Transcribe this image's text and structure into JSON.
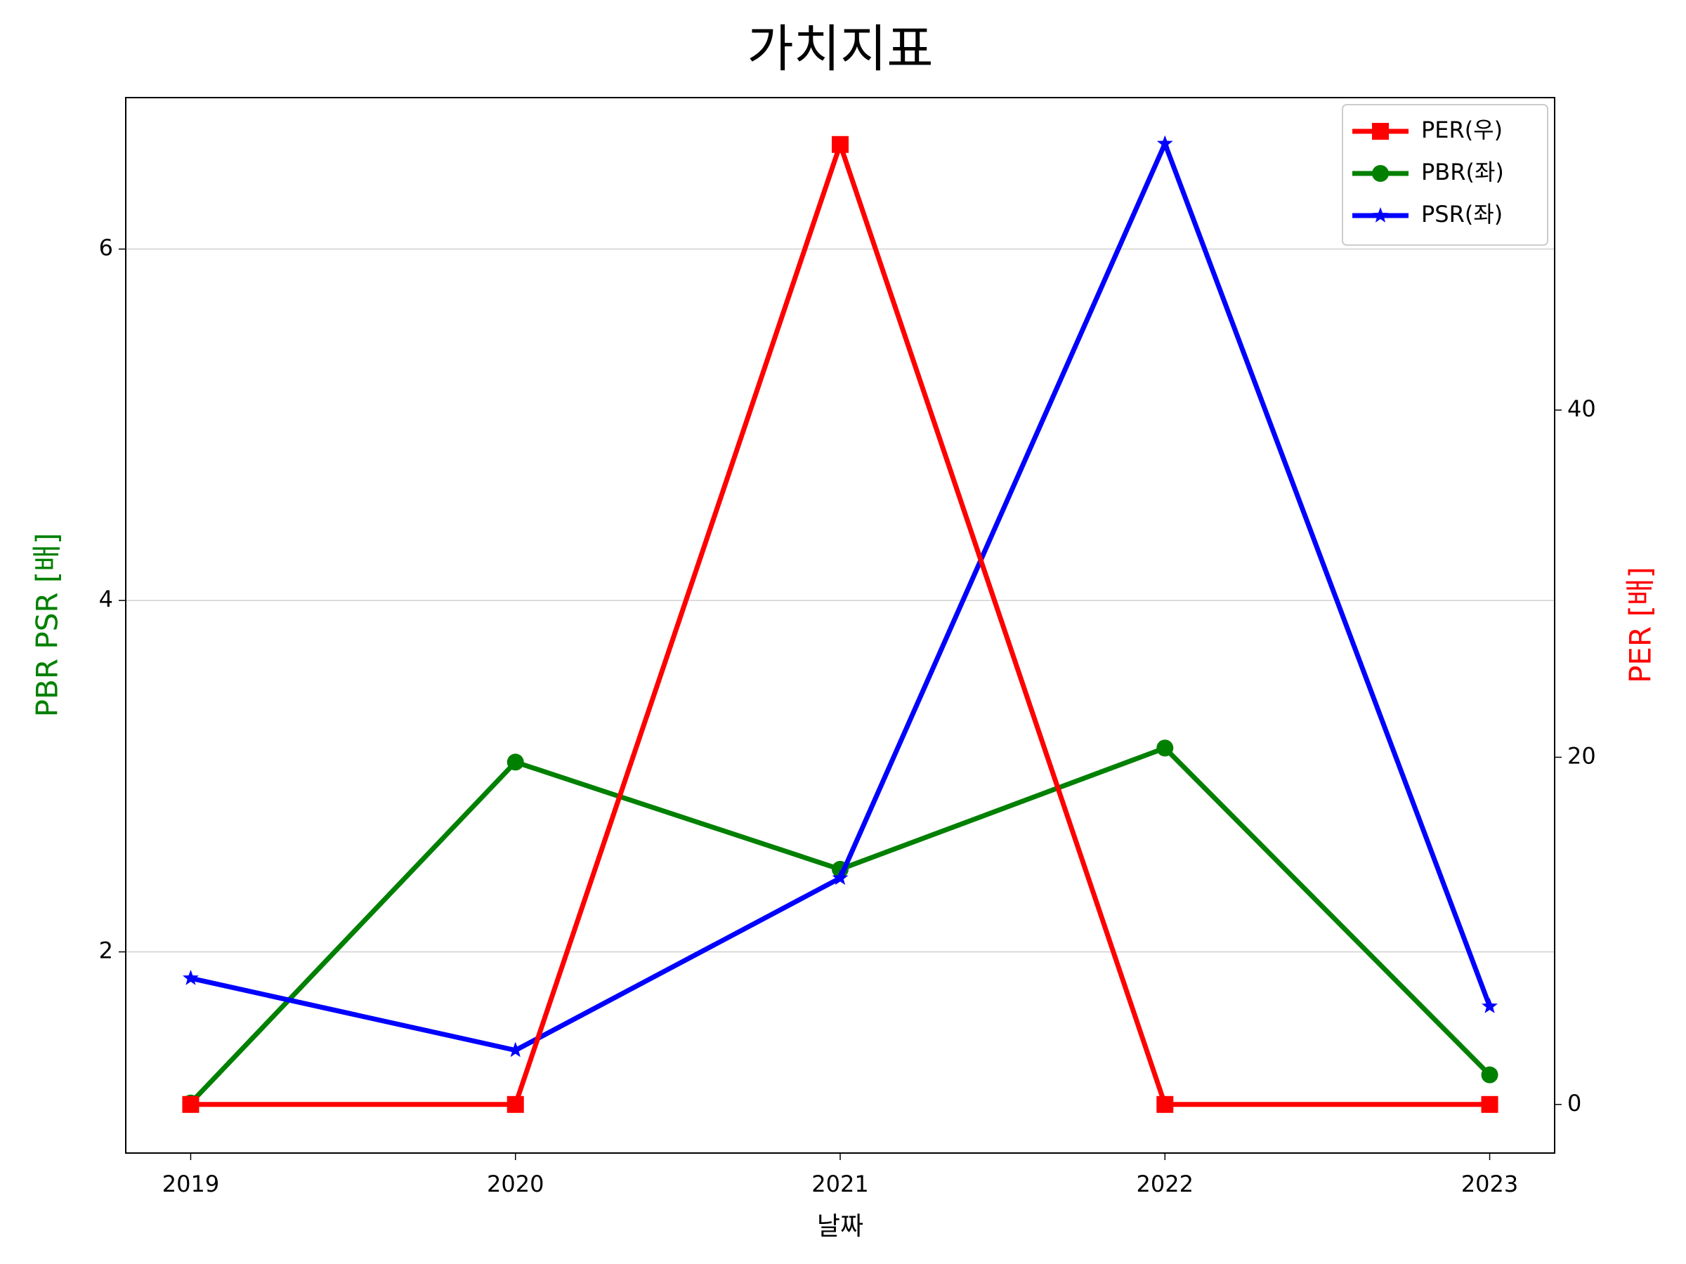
{
  "chart_data": {
    "type": "line",
    "title": "가치지표",
    "x_label": "날짜",
    "y_label": "PBR PSR [배]",
    "y2_label": "PER [배]",
    "y_label_color": "green",
    "y2_label_color": "red",
    "x": [
      2019,
      2020,
      2021,
      2022,
      2023
    ],
    "xlim": [
      2018.8,
      2023.2
    ],
    "xticks": [
      2019,
      2020,
      2021,
      2022,
      2023
    ],
    "ylim": [
      0.855,
      6.862
    ],
    "yticks": [
      2,
      4,
      6
    ],
    "y2lim": [
      -2.8,
      58.0
    ],
    "y2ticks": [
      0,
      20,
      40
    ],
    "grid": true,
    "legend": "upper right",
    "series": [
      {
        "name": "PER(우)",
        "color": "#ff0000",
        "marker": "square",
        "axis": "y2",
        "values": [
          0,
          0,
          55.3,
          0,
          0
        ]
      },
      {
        "name": "PBR(좌)",
        "color": "#008000",
        "marker": "circle",
        "values": [
          1.14,
          3.08,
          2.47,
          3.16,
          1.3
        ]
      },
      {
        "name": "PSR(좌)",
        "color": "#0000ff",
        "marker": "star",
        "values": [
          1.85,
          1.44,
          2.42,
          6.6,
          1.69
        ]
      }
    ]
  }
}
